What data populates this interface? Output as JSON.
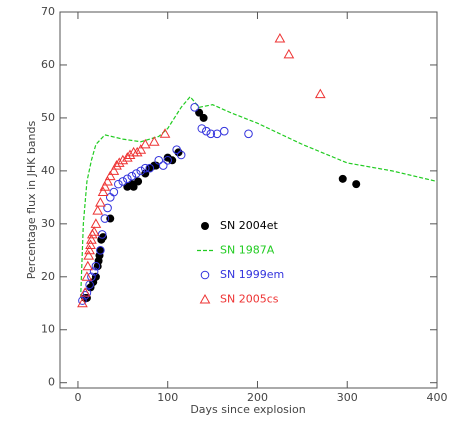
{
  "chart_data": {
    "type": "scatter",
    "xlabel": "Days since explosion",
    "ylabel": "Percentage flux in JHK bands",
    "xlim": [
      -20,
      400
    ],
    "ylim": [
      -1,
      70
    ],
    "xticks": [
      0,
      100,
      200,
      300,
      400
    ],
    "yticks": [
      0,
      10,
      20,
      30,
      40,
      50,
      60,
      70
    ],
    "legend": "center",
    "series": [
      {
        "name": "SN 2004et",
        "color": "#000000",
        "style": "circle-filled",
        "x": [
          8,
          10,
          14,
          17,
          20,
          22,
          23,
          24,
          25,
          26,
          28,
          36,
          55,
          60,
          62,
          67,
          75,
          80,
          85,
          87,
          100,
          105,
          112,
          135,
          140,
          295,
          310
        ],
        "y": [
          16,
          16,
          18,
          19,
          20,
          22,
          23,
          24,
          25,
          27,
          27.5,
          31,
          37,
          37.5,
          37,
          38,
          39.5,
          40.5,
          41,
          41,
          42.5,
          42,
          43.5,
          51,
          50,
          38.5,
          37.5
        ]
      },
      {
        "name": "SN 1987A",
        "color": "#22cc22",
        "style": "dashed-line",
        "x": [
          3,
          6,
          10,
          15,
          20,
          30,
          50,
          70,
          90,
          100,
          115,
          125,
          135,
          150,
          170,
          200,
          250,
          300,
          350,
          400
        ],
        "y": [
          16,
          30,
          38,
          42,
          45,
          46.8,
          46,
          45.5,
          46.5,
          48,
          52,
          54,
          52,
          52.5,
          51,
          49,
          45,
          41.5,
          40,
          38
        ]
      },
      {
        "name": "SN 1999em",
        "color": "#3333dd",
        "style": "circle-open",
        "x": [
          5,
          8,
          10,
          13,
          15,
          18,
          20,
          25,
          27,
          30,
          33,
          36,
          40,
          45,
          50,
          55,
          60,
          65,
          70,
          75,
          80,
          90,
          95,
          100,
          110,
          115,
          130,
          138,
          143,
          148,
          155,
          163,
          190
        ],
        "y": [
          15.5,
          16.5,
          17,
          18.5,
          20,
          21,
          22,
          25,
          28,
          31,
          33,
          35,
          36,
          37.5,
          38,
          38.5,
          39,
          39.5,
          40,
          40.5,
          40.5,
          42,
          41,
          42,
          44,
          43,
          52,
          48,
          47.5,
          47,
          47,
          47.5,
          47
        ]
      },
      {
        "name": "SN 2005cs",
        "color": "#ee3333",
        "style": "triangle-open",
        "x": [
          5,
          8,
          10,
          11,
          12,
          13,
          14,
          15,
          16,
          18,
          20,
          22,
          25,
          28,
          30,
          33,
          36,
          40,
          43,
          46,
          50,
          55,
          58,
          62,
          66,
          70,
          75,
          85,
          97,
          225,
          235,
          270
        ],
        "y": [
          15,
          17,
          20,
          22,
          24,
          25,
          26,
          27,
          28,
          28.5,
          30,
          32.5,
          34,
          36,
          37,
          38,
          39,
          40,
          41,
          41.5,
          42,
          42.5,
          43,
          43.5,
          43.5,
          44,
          45,
          45.5,
          47,
          65,
          62,
          54.5
        ]
      }
    ]
  }
}
